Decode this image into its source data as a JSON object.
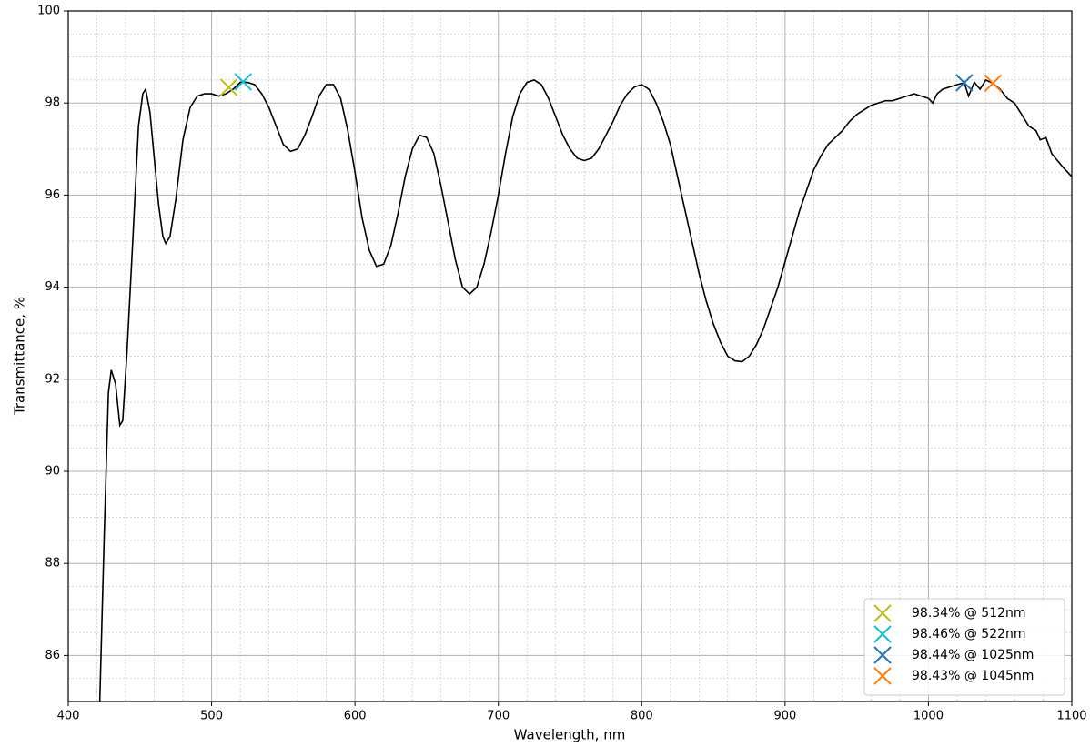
{
  "chart_data": {
    "type": "line",
    "xlabel": "Wavelength, nm",
    "ylabel": "Transmittance, %",
    "color": "#000000",
    "grid": true,
    "xlim": [
      400,
      1100
    ],
    "ylim": [
      85,
      100
    ],
    "xticks": [
      400,
      500,
      600,
      700,
      800,
      900,
      1000,
      1100
    ],
    "yticks": [
      86,
      88,
      90,
      92,
      94,
      96,
      98,
      100
    ],
    "xminorticks": [
      420,
      440,
      460,
      480,
      520,
      540,
      560,
      580,
      620,
      640,
      660,
      680,
      720,
      740,
      760,
      780,
      820,
      840,
      860,
      880,
      920,
      940,
      960,
      980,
      1020,
      1040,
      1060,
      1080
    ],
    "yminorticks": [
      85.5,
      86.5,
      87,
      87.5,
      88.5,
      89,
      89.5,
      90.5,
      91,
      91.5,
      92.5,
      93,
      93.5,
      94.5,
      95,
      95.5,
      96.5,
      97,
      97.5,
      98.5,
      99,
      99.5
    ],
    "x": [
      422,
      425,
      428,
      430,
      433,
      436,
      438,
      441,
      445,
      449,
      452,
      454,
      457,
      460,
      463,
      466,
      468,
      471,
      475,
      480,
      485,
      490,
      495,
      500,
      505,
      510,
      515,
      520,
      525,
      530,
      535,
      540,
      545,
      550,
      555,
      560,
      565,
      570,
      575,
      580,
      585,
      590,
      595,
      600,
      605,
      610,
      615,
      620,
      625,
      630,
      635,
      640,
      645,
      650,
      655,
      660,
      665,
      670,
      675,
      680,
      685,
      690,
      695,
      700,
      705,
      710,
      715,
      720,
      725,
      730,
      735,
      740,
      745,
      750,
      755,
      760,
      765,
      770,
      775,
      780,
      785,
      790,
      795,
      800,
      805,
      810,
      815,
      820,
      825,
      830,
      835,
      840,
      845,
      850,
      855,
      860,
      865,
      870,
      875,
      880,
      885,
      890,
      895,
      900,
      905,
      910,
      915,
      920,
      925,
      930,
      935,
      940,
      945,
      950,
      955,
      960,
      965,
      970,
      975,
      980,
      985,
      990,
      995,
      1000,
      1003,
      1006,
      1010,
      1015,
      1020,
      1025,
      1028,
      1032,
      1036,
      1040,
      1045,
      1050,
      1055,
      1060,
      1065,
      1070,
      1075,
      1078,
      1082,
      1086,
      1090,
      1094,
      1097,
      1100
    ],
    "values": [
      85.0,
      88.5,
      91.7,
      92.2,
      91.9,
      91.0,
      91.1,
      92.6,
      95.0,
      97.5,
      98.2,
      98.3,
      97.8,
      96.8,
      95.8,
      95.1,
      94.95,
      95.1,
      95.9,
      97.2,
      97.9,
      98.15,
      98.2,
      98.2,
      98.15,
      98.2,
      98.3,
      98.45,
      98.45,
      98.4,
      98.2,
      97.9,
      97.5,
      97.1,
      96.95,
      97.0,
      97.3,
      97.7,
      98.15,
      98.4,
      98.4,
      98.1,
      97.4,
      96.5,
      95.5,
      94.8,
      94.45,
      94.5,
      94.9,
      95.6,
      96.4,
      97.0,
      97.3,
      97.25,
      96.9,
      96.2,
      95.4,
      94.6,
      94.0,
      93.85,
      94.0,
      94.5,
      95.2,
      96.0,
      96.9,
      97.7,
      98.2,
      98.45,
      98.5,
      98.4,
      98.1,
      97.7,
      97.3,
      97.0,
      96.8,
      96.75,
      96.8,
      97.0,
      97.3,
      97.6,
      97.95,
      98.2,
      98.35,
      98.4,
      98.3,
      98.0,
      97.6,
      97.1,
      96.4,
      95.7,
      95.0,
      94.3,
      93.7,
      93.2,
      92.8,
      92.5,
      92.4,
      92.38,
      92.5,
      92.75,
      93.1,
      93.55,
      94.0,
      94.55,
      95.1,
      95.65,
      96.1,
      96.55,
      96.85,
      97.1,
      97.25,
      97.4,
      97.6,
      97.75,
      97.85,
      97.95,
      98.0,
      98.05,
      98.05,
      98.1,
      98.15,
      98.2,
      98.15,
      98.1,
      98.0,
      98.2,
      98.3,
      98.35,
      98.4,
      98.44,
      98.15,
      98.45,
      98.3,
      98.5,
      98.43,
      98.3,
      98.1,
      98.0,
      97.75,
      97.5,
      97.4,
      97.2,
      97.25,
      96.9,
      96.75,
      96.6,
      96.5,
      96.4
    ],
    "markers": {
      "type": "scatter",
      "legend": "lower right",
      "series": [
        {
          "name": "98.34% @ 512nm",
          "color": "#bcbd22",
          "x": [
            512
          ],
          "values": [
            98.34
          ]
        },
        {
          "name": "98.46% @ 522nm",
          "color": "#17becf",
          "x": [
            522
          ],
          "values": [
            98.46
          ]
        },
        {
          "name": "98.44% @ 1025nm",
          "color": "#1f77b4",
          "x": [
            1025
          ],
          "values": [
            98.44
          ]
        },
        {
          "name": "98.43% @ 1045nm",
          "color": "#ff7f0e",
          "x": [
            1045
          ],
          "values": [
            98.43
          ]
        }
      ]
    }
  }
}
